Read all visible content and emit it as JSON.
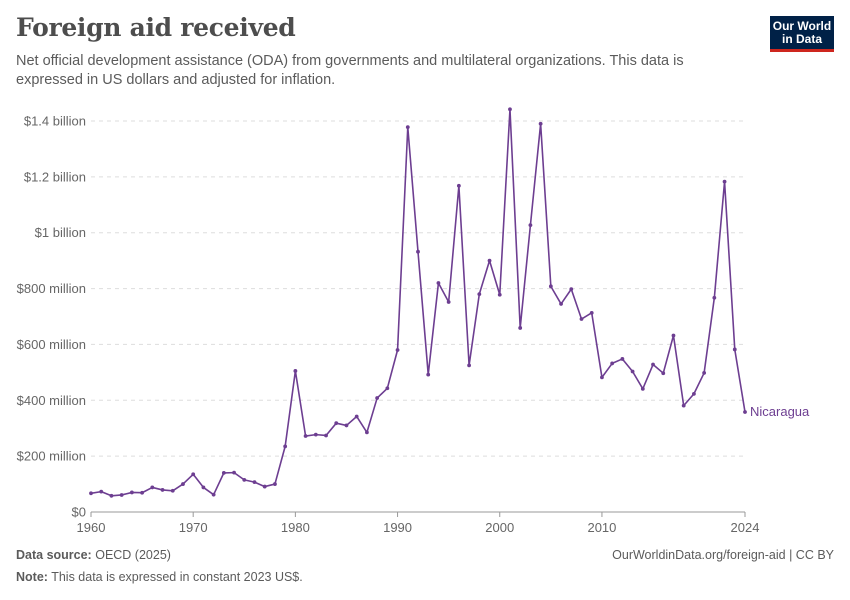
{
  "header": {
    "title": "Foreign aid received",
    "subtitle": "Net official development assistance (ODA) from governments and multilateral organizations. This data is expressed in US dollars and adjusted for inflation."
  },
  "logo": {
    "line1": "Our World",
    "line2": "in Data"
  },
  "footer": {
    "source_label": "Data source:",
    "source_text": "OECD (2025)",
    "url": "OurWorldinData.org/foreign-aid | CC BY",
    "note_label": "Note:",
    "note_text": "This data is expressed in constant 2023 US$."
  },
  "colors": {
    "series": "#6d3e91",
    "logo_bg": "#002147",
    "logo_accent": "#ce261e"
  },
  "chart_data": {
    "type": "line",
    "title": "Foreign aid received",
    "ylim": [
      0,
      1400000000
    ],
    "xlim": [
      1960,
      2024
    ],
    "y_ticks": [
      {
        "value": 0,
        "label": "$0"
      },
      {
        "value": 200000000,
        "label": "$200 million"
      },
      {
        "value": 400000000,
        "label": "$400 million"
      },
      {
        "value": 600000000,
        "label": "$600 million"
      },
      {
        "value": 800000000,
        "label": "$800 million"
      },
      {
        "value": 1000000000,
        "label": "$1 billion"
      },
      {
        "value": 1200000000,
        "label": "$1.2 billion"
      },
      {
        "value": 1400000000,
        "label": "$1.4 billion"
      }
    ],
    "x_ticks": [
      {
        "value": 1960,
        "label": "1960"
      },
      {
        "value": 1970,
        "label": "1970"
      },
      {
        "value": 1980,
        "label": "1980"
      },
      {
        "value": 1990,
        "label": "1990"
      },
      {
        "value": 2000,
        "label": "2000"
      },
      {
        "value": 2010,
        "label": "2010"
      },
      {
        "value": 2024,
        "label": "2024"
      }
    ],
    "grid": true,
    "series": [
      {
        "name": "Nicaragua",
        "x": [
          1960,
          1961,
          1962,
          1963,
          1964,
          1965,
          1966,
          1967,
          1968,
          1969,
          1970,
          1971,
          1972,
          1973,
          1974,
          1975,
          1976,
          1977,
          1978,
          1979,
          1980,
          1981,
          1982,
          1983,
          1984,
          1985,
          1986,
          1987,
          1988,
          1989,
          1990,
          1991,
          1992,
          1993,
          1994,
          1995,
          1996,
          1997,
          1998,
          1999,
          2000,
          2001,
          2002,
          2003,
          2004,
          2005,
          2006,
          2007,
          2008,
          2009,
          2010,
          2011,
          2012,
          2013,
          2014,
          2015,
          2016,
          2017,
          2018,
          2019,
          2020,
          2021,
          2022,
          2023,
          2024
        ],
        "y": [
          67000000,
          73000000,
          58000000,
          61000000,
          70000000,
          69000000,
          88000000,
          79000000,
          76000000,
          100000000,
          135000000,
          88000000,
          62000000,
          140000000,
          141000000,
          115000000,
          107000000,
          91000000,
          100000000,
          235000000,
          505000000,
          272000000,
          277000000,
          274000000,
          318000000,
          310000000,
          342000000,
          285000000,
          408000000,
          443000000,
          580000000,
          1378000000,
          932000000,
          492000000,
          820000000,
          752000000,
          1168000000,
          525000000,
          780000000,
          900000000,
          778000000,
          1442000000,
          659000000,
          1027000000,
          1390000000,
          808000000,
          745000000,
          798000000,
          691000000,
          713000000,
          482000000,
          532000000,
          548000000,
          503000000,
          441000000,
          528000000,
          497000000,
          632000000,
          381000000,
          423000000,
          498000000,
          767000000,
          1183000000,
          582000000,
          358000000
        ]
      }
    ]
  }
}
